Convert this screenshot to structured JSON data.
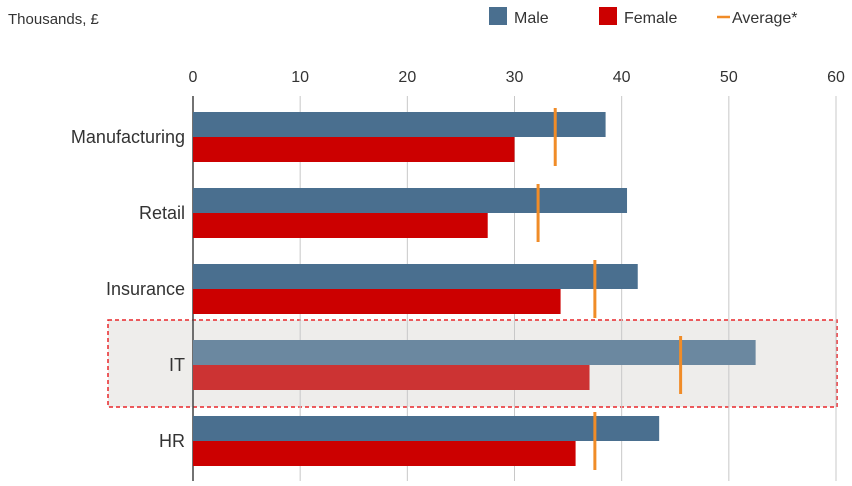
{
  "chart_data": {
    "type": "bar",
    "orientation": "horizontal",
    "unit_label": "Thousands, £",
    "categories": [
      "Manufacturing",
      "Retail",
      "Insurance",
      "IT",
      "HR"
    ],
    "series": [
      {
        "name": "Male",
        "color": "#4a6f8f",
        "values": [
          38.5,
          40.5,
          41.5,
          52.5,
          43.5
        ]
      },
      {
        "name": "Female",
        "color": "#cc0000",
        "values": [
          30,
          27.5,
          34.3,
          37,
          35.7
        ]
      }
    ],
    "average": {
      "name": "Average*",
      "color": "#f08c28",
      "values": [
        33.8,
        32.2,
        37.5,
        45.5,
        37.5
      ]
    },
    "highlight": {
      "category": "IT",
      "male_color": "#6b88a0",
      "female_color": "#cc3333"
    },
    "xlim": [
      0,
      60
    ],
    "xticks": [
      0,
      10,
      20,
      30,
      40,
      50,
      60
    ],
    "grid": true,
    "legend_position": "top-right"
  }
}
